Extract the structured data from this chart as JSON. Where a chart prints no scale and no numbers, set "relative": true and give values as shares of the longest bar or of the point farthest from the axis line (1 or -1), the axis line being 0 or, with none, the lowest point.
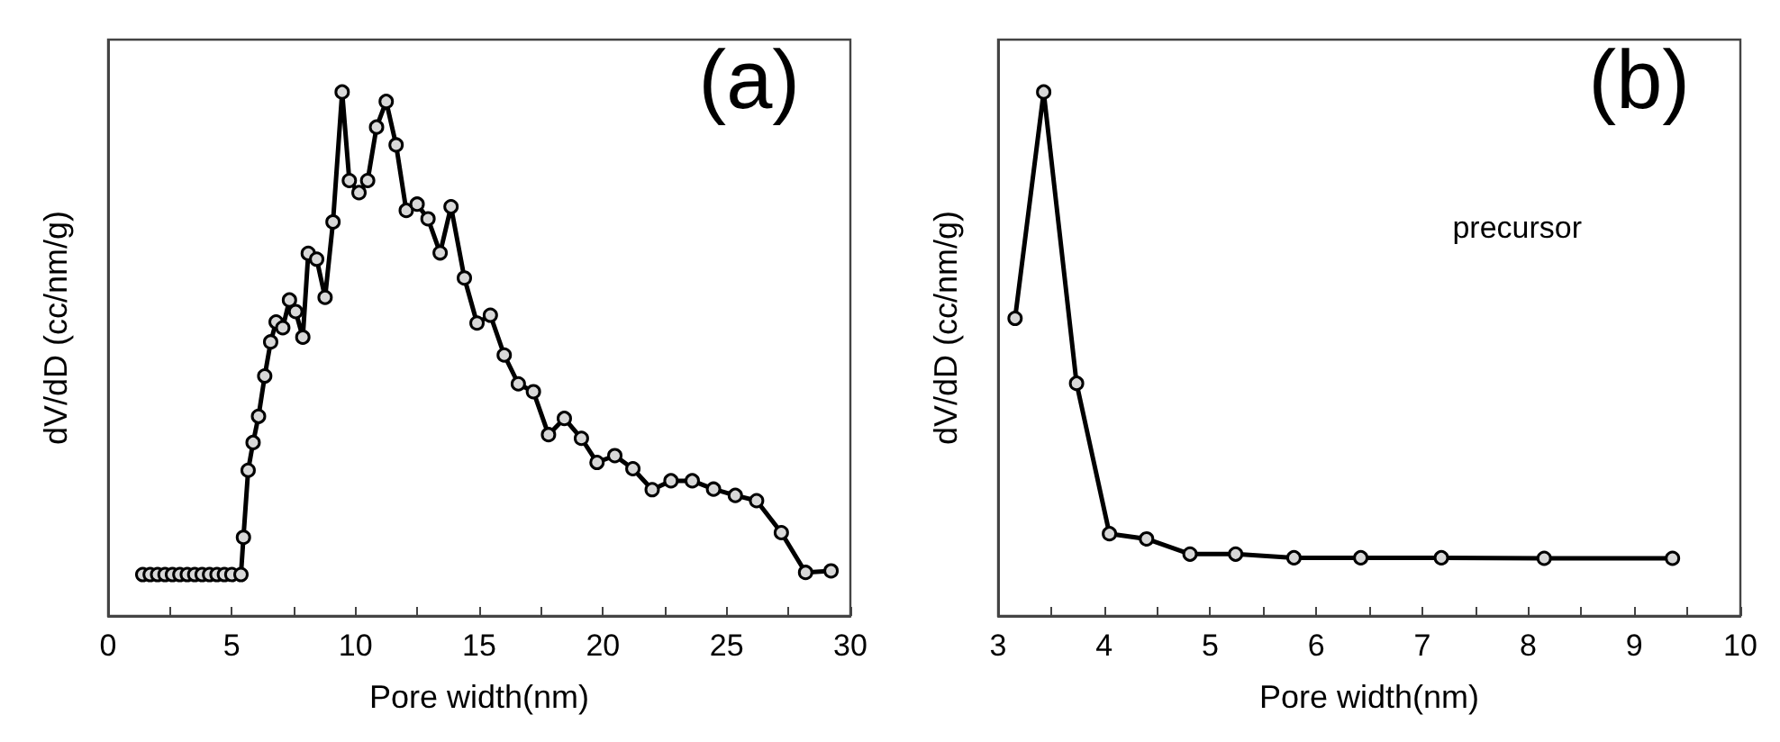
{
  "chart_data": [
    {
      "type": "line",
      "title": "(a)",
      "xlabel": "Pore width(nm)",
      "ylabel": "dV/dD (cc/nm/g)",
      "relative": true,
      "tick_labels": "x",
      "grid": false,
      "marker": "circle",
      "line_style": "solid",
      "xlim": [
        0,
        30
      ],
      "xticks": [
        0,
        5,
        10,
        15,
        20,
        25,
        30
      ],
      "series": [
        {
          "color": "#000000",
          "x": [
            1.4,
            1.7,
            2.0,
            2.3,
            2.6,
            2.9,
            3.2,
            3.5,
            3.8,
            4.1,
            4.4,
            4.7,
            5.0,
            5.37,
            5.47,
            5.66,
            5.86,
            6.08,
            6.33,
            6.57,
            6.79,
            7.06,
            7.33,
            7.58,
            7.87,
            8.09,
            8.43,
            8.77,
            9.09,
            9.46,
            9.75,
            10.14,
            10.49,
            10.85,
            11.24,
            11.64,
            12.05,
            12.49,
            12.93,
            13.42,
            13.86,
            14.4,
            14.91,
            15.45,
            16.01,
            16.58,
            17.19,
            17.8,
            18.44,
            19.13,
            19.76,
            20.48,
            21.21,
            21.99,
            22.75,
            23.61,
            24.47,
            25.35,
            26.21,
            27.21,
            28.19,
            29.22
          ],
          "values": [
            0.079,
            0.079,
            0.079,
            0.079,
            0.079,
            0.079,
            0.079,
            0.079,
            0.079,
            0.079,
            0.079,
            0.079,
            0.079,
            0.079,
            0.15,
            0.278,
            0.331,
            0.381,
            0.458,
            0.523,
            0.561,
            0.55,
            0.603,
            0.581,
            0.532,
            0.692,
            0.681,
            0.608,
            0.752,
            1.0,
            0.831,
            0.808,
            0.831,
            0.933,
            0.982,
            0.899,
            0.774,
            0.786,
            0.758,
            0.693,
            0.781,
            0.645,
            0.559,
            0.574,
            0.498,
            0.443,
            0.428,
            0.346,
            0.377,
            0.339,
            0.293,
            0.306,
            0.281,
            0.241,
            0.258,
            0.258,
            0.242,
            0.23,
            0.22,
            0.159,
            0.083,
            0.086
          ]
        }
      ]
    },
    {
      "type": "line",
      "title": "(b)",
      "xlabel": "Pore width(nm)",
      "ylabel": "dV/dD (cc/nm/g)",
      "relative": true,
      "tick_labels": "x",
      "grid": false,
      "marker": "circle",
      "line_style": "solid",
      "xlim": [
        3,
        10
      ],
      "xticks": [
        3,
        4,
        5,
        6,
        7,
        8,
        9,
        10
      ],
      "annotations": [
        "precursor"
      ],
      "series": [
        {
          "color": "#000000",
          "x": [
            3.16,
            3.43,
            3.74,
            4.05,
            4.4,
            4.81,
            5.24,
            5.79,
            6.42,
            7.18,
            8.15,
            9.36
          ],
          "values": [
            0.568,
            1.0,
            0.444,
            0.157,
            0.147,
            0.118,
            0.118,
            0.111,
            0.111,
            0.111,
            0.11,
            0.11
          ]
        }
      ]
    }
  ]
}
